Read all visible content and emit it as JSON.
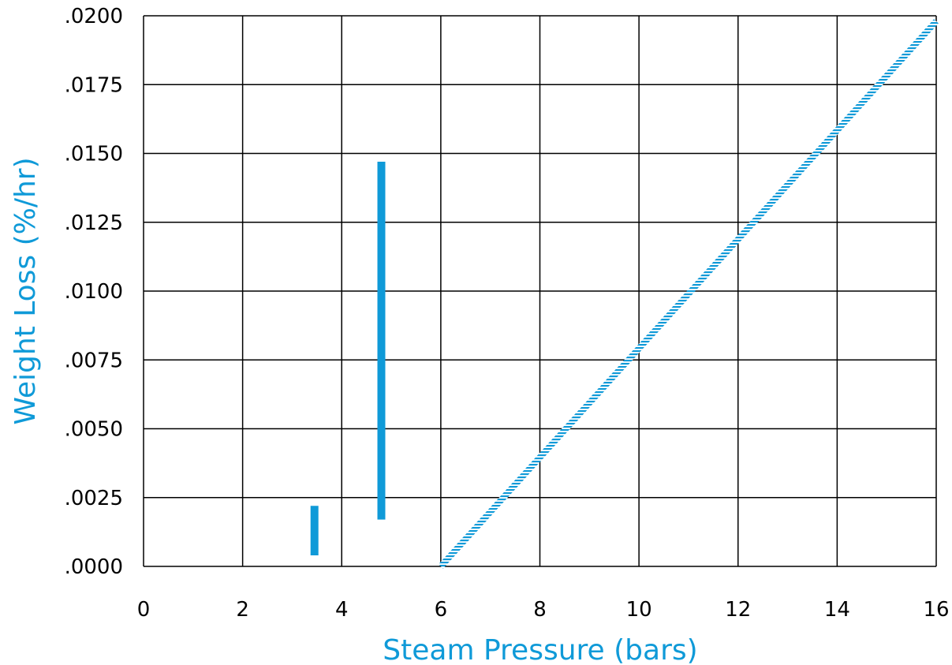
{
  "chart_data": {
    "type": "scatter",
    "title": "",
    "xlabel": "Steam Pressure (bars)",
    "ylabel": "Weight Loss (%/hr)",
    "xlim": [
      0,
      16
    ],
    "ylim": [
      0,
      0.02
    ],
    "xticks": [
      0,
      2,
      4,
      6,
      8,
      10,
      12,
      14,
      16
    ],
    "xtick_labels": [
      "0",
      "2",
      "4",
      "6",
      "8",
      "10",
      "12",
      "14",
      "16"
    ],
    "yticks": [
      0,
      0.0025,
      0.005,
      0.0075,
      0.01,
      0.0125,
      0.015,
      0.0175,
      0.02
    ],
    "ytick_labels": [
      ".0000",
      ".0025",
      ".0050",
      ".0075",
      ".0100",
      ".0125",
      ".0150",
      ".0175",
      ".0200"
    ],
    "grid": true,
    "legend": "none",
    "colors": {
      "accent": "#0f9ad8",
      "grid": "#000000",
      "tick_text": "#000000"
    },
    "ranges": [
      {
        "x": 3.45,
        "y_low": 0.0004,
        "y_high": 0.0022
      },
      {
        "x": 4.8,
        "y_low": 0.0017,
        "y_high": 0.0147
      }
    ],
    "trend_line": {
      "style": "hatched",
      "points": [
        {
          "x": 6,
          "y": 0
        },
        {
          "x": 16,
          "y": 0.0198
        }
      ]
    }
  }
}
